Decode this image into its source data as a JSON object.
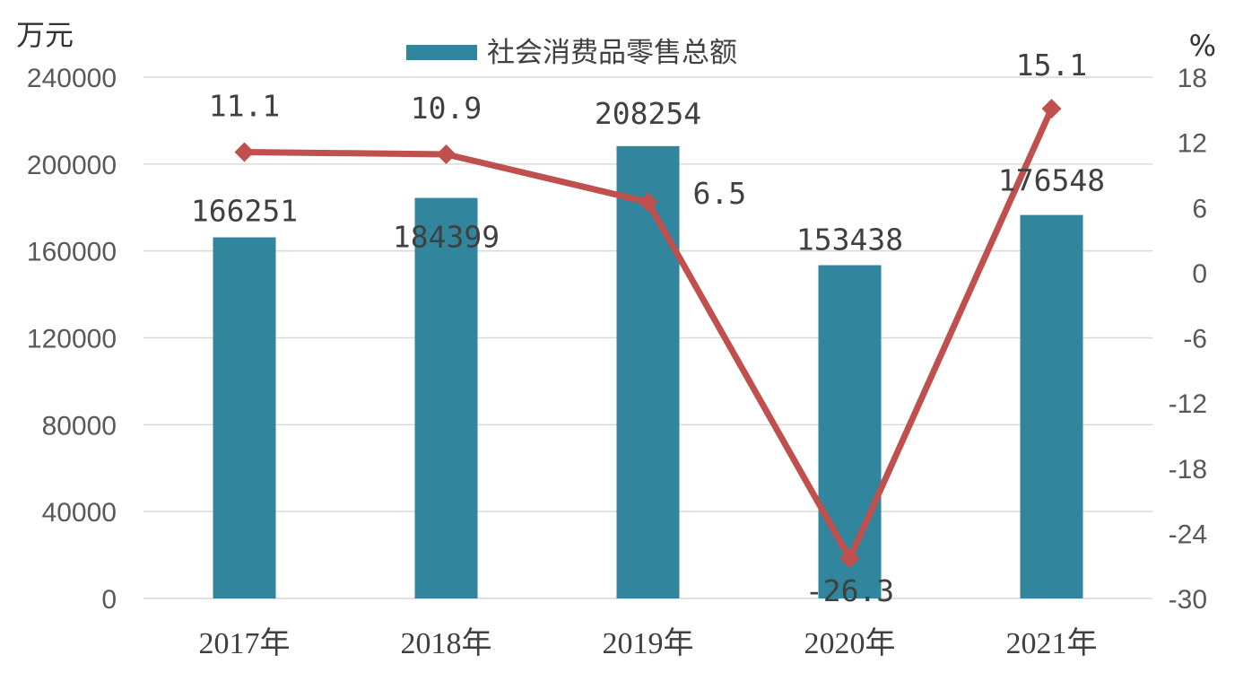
{
  "chart_data": {
    "type": "bar",
    "categories": [
      "2017年",
      "2018年",
      "2019年",
      "2020年",
      "2021年"
    ],
    "series": [
      {
        "name": "社会消费品零售总额",
        "type": "bar",
        "axis": "left",
        "color": "#31859c",
        "values": [
          166251,
          184399,
          208254,
          153438,
          176548
        ],
        "labels": [
          "166251",
          "184399",
          "208254",
          "153438",
          "176548"
        ]
      },
      {
        "type": "line",
        "axis": "right",
        "color": "#c0504d",
        "values": [
          11.1,
          10.9,
          6.5,
          -26.3,
          15.1
        ],
        "labels": [
          "11.1",
          "10.9",
          "6.5",
          "-26.3",
          "15.1"
        ]
      }
    ],
    "y_left": {
      "unit": "万元",
      "ylim": [
        0,
        240000
      ],
      "ticks": [
        0,
        40000,
        80000,
        120000,
        160000,
        200000,
        240000
      ]
    },
    "y_right": {
      "unit": "%",
      "ylim": [
        -30,
        18
      ],
      "ticks": [
        -30,
        -24,
        -18,
        -12,
        -6,
        0,
        6,
        12,
        18
      ]
    },
    "grid": true,
    "legend": "top-center"
  }
}
